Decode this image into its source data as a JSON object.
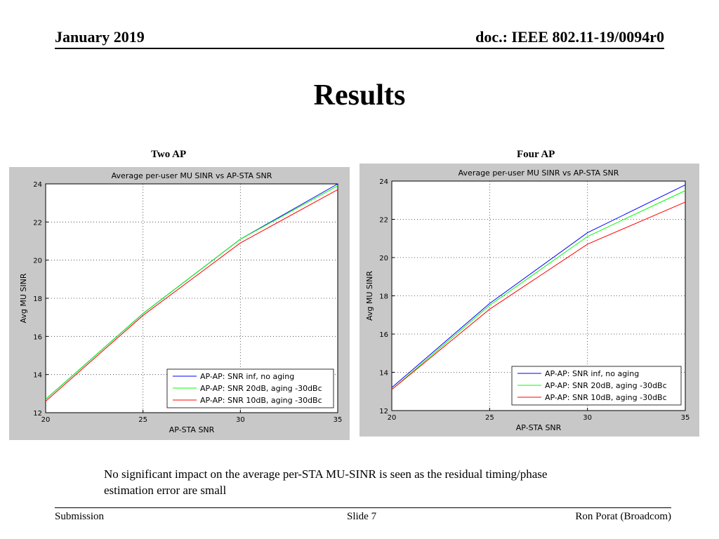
{
  "header": {
    "date": "January 2019",
    "doc": "doc.: IEEE 802.11-19/0094r0"
  },
  "slide_title": "Results",
  "labels": {
    "left": "Two AP",
    "right": "Four AP"
  },
  "body_text": "No significant impact on the average per-STA MU-SINR is seen as the residual timing/phase estimation error are small",
  "footer": {
    "left": "Submission",
    "center": "Slide 7",
    "right": "Ron Porat (Broadcom)"
  },
  "colors": {
    "series": [
      "#0000ff",
      "#00ff00",
      "#ff0000"
    ],
    "plot_bg": "#c8c8c8"
  },
  "chart_data": [
    {
      "type": "line",
      "title": "Average per-user MU SINR vs AP-STA SNR",
      "xlabel": "AP-STA SNR",
      "ylabel": "Avg MU SINR",
      "xlim": [
        20,
        35
      ],
      "ylim": [
        12,
        24
      ],
      "xticks": [
        20,
        25,
        30,
        35
      ],
      "yticks": [
        12,
        14,
        16,
        18,
        20,
        22,
        24
      ],
      "grid": true,
      "legend_position": "bottom-right",
      "x": [
        20,
        25,
        30,
        35
      ],
      "series": [
        {
          "name": "AP-AP: SNR inf, no aging",
          "values": [
            12.7,
            17.2,
            21.1,
            24.0
          ]
        },
        {
          "name": "AP-AP: SNR 20dB, aging -30dBc",
          "values": [
            12.7,
            17.2,
            21.1,
            23.9
          ]
        },
        {
          "name": "AP-AP: SNR 10dB, aging -30dBc",
          "values": [
            12.6,
            17.1,
            20.9,
            23.7
          ]
        }
      ]
    },
    {
      "type": "line",
      "title": "Average per-user MU SINR vs AP-STA SNR",
      "xlabel": "AP-STA SNR",
      "ylabel": "Avg MU SINR",
      "xlim": [
        20,
        35
      ],
      "ylim": [
        12,
        24
      ],
      "xticks": [
        20,
        25,
        30,
        35
      ],
      "yticks": [
        12,
        14,
        16,
        18,
        20,
        22,
        24
      ],
      "grid": true,
      "legend_position": "bottom-right",
      "x": [
        20,
        25,
        30,
        35
      ],
      "series": [
        {
          "name": "AP-AP: SNR inf, no aging",
          "values": [
            13.2,
            17.6,
            21.3,
            23.8
          ]
        },
        {
          "name": "AP-AP: SNR 20dB, aging -30dBc",
          "values": [
            13.1,
            17.5,
            21.1,
            23.5
          ]
        },
        {
          "name": "AP-AP: SNR 10dB, aging -30dBc",
          "values": [
            13.1,
            17.3,
            20.7,
            22.9
          ]
        }
      ]
    }
  ]
}
